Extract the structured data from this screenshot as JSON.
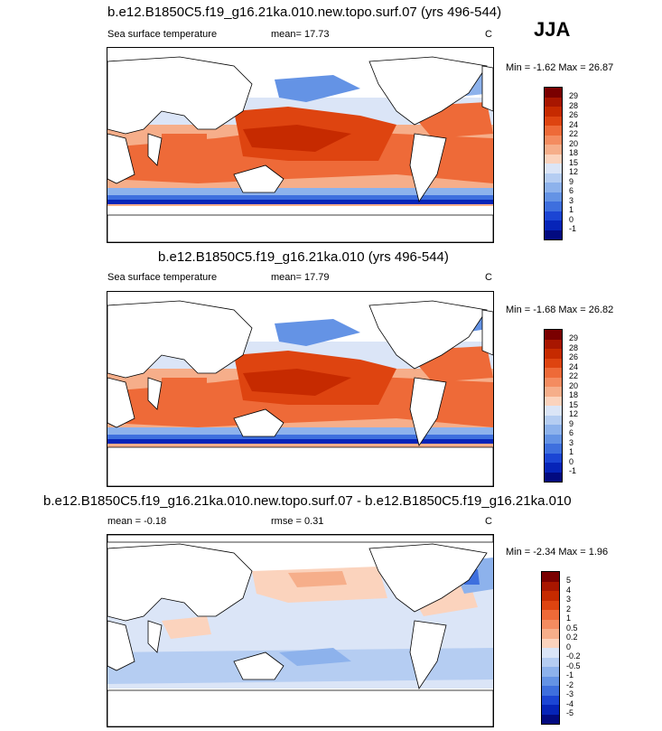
{
  "season": "JJA",
  "panels": [
    {
      "title": "b.e12.B1850C5.f19_g16.21ka.010.new.topo.surf.07 (yrs 496-544)",
      "left_label": "Sea surface temperature",
      "mean_label": "mean=",
      "mean_value": "17.73",
      "units": "C",
      "minmax_label": "Min = -1.62 Max = 26.87",
      "colorbar": {
        "labels": [
          "29",
          "28",
          "26",
          "24",
          "22",
          "20",
          "18",
          "15",
          "12",
          "9",
          "6",
          "3",
          "1",
          "0",
          "-1"
        ],
        "colors": [
          "#7a0000",
          "#a81600",
          "#c62a00",
          "#de4410",
          "#ee6a38",
          "#f48c60",
          "#f6ae8a",
          "#fbd3bd",
          "#dbe5f7",
          "#b5cdf2",
          "#8db2ec",
          "#6493e5",
          "#3e6fde",
          "#1b45d4",
          "#0624b8",
          "#020a80"
        ]
      }
    },
    {
      "title": "b.e12.B1850C5.f19_g16.21ka.010 (yrs 496-544)",
      "left_label": "Sea surface temperature",
      "mean_label": "mean=",
      "mean_value": "17.79",
      "units": "C",
      "minmax_label": "Min = -1.68 Max = 26.82",
      "colorbar": {
        "labels": [
          "29",
          "28",
          "26",
          "24",
          "22",
          "20",
          "18",
          "15",
          "12",
          "9",
          "6",
          "3",
          "1",
          "0",
          "-1"
        ],
        "colors": [
          "#7a0000",
          "#a81600",
          "#c62a00",
          "#de4410",
          "#ee6a38",
          "#f48c60",
          "#f6ae8a",
          "#fbd3bd",
          "#dbe5f7",
          "#b5cdf2",
          "#8db2ec",
          "#6493e5",
          "#3e6fde",
          "#1b45d4",
          "#0624b8",
          "#020a80"
        ]
      }
    },
    {
      "title": "b.e12.B1850C5.f19_g16.21ka.010.new.topo.surf.07 - b.e12.B1850C5.f19_g16.21ka.010",
      "mean_label": "mean =",
      "mean_value": "-0.18",
      "rmse_label": "rmse =",
      "rmse_value": "0.31",
      "units": "C",
      "minmax_label": "Min = -2.34 Max = 1.96",
      "colorbar": {
        "labels": [
          "5",
          "4",
          "3",
          "2",
          "1",
          "0.5",
          "0.2",
          "0",
          "-0.2",
          "-0.5",
          "-1",
          "-2",
          "-3",
          "-4",
          "-5"
        ],
        "colors": [
          "#7a0000",
          "#a81600",
          "#c62a00",
          "#de4410",
          "#ee6a38",
          "#f48c60",
          "#f6ae8a",
          "#fbd3bd",
          "#dbe5f7",
          "#b5cdf2",
          "#8db2ec",
          "#6493e5",
          "#3e6fde",
          "#1b45d4",
          "#0624b8",
          "#020a80"
        ]
      }
    }
  ],
  "chart_data": [
    {
      "type": "heatmap",
      "title": "b.e12.B1850C5.f19_g16.21ka.010.new.topo.surf.07 (yrs 496-544)",
      "variable": "Sea surface temperature",
      "units": "C",
      "mean": 17.73,
      "min": -1.62,
      "max": 26.87,
      "contour_levels": [
        -1,
        0,
        1,
        3,
        6,
        9,
        12,
        15,
        18,
        20,
        22,
        24,
        26,
        28,
        29
      ],
      "projection": "global cylindrical equidistant, centered on Pacific"
    },
    {
      "type": "heatmap",
      "title": "b.e12.B1850C5.f19_g16.21ka.010 (yrs 496-544)",
      "variable": "Sea surface temperature",
      "units": "C",
      "mean": 17.79,
      "min": -1.68,
      "max": 26.82,
      "contour_levels": [
        -1,
        0,
        1,
        3,
        6,
        9,
        12,
        15,
        18,
        20,
        22,
        24,
        26,
        28,
        29
      ],
      "projection": "global cylindrical equidistant, centered on Pacific"
    },
    {
      "type": "heatmap",
      "title": "b.e12.B1850C5.f19_g16.21ka.010.new.topo.surf.07 - b.e12.B1850C5.f19_g16.21ka.010",
      "units": "C",
      "mean": -0.18,
      "rmse": 0.31,
      "min": -2.34,
      "max": 1.96,
      "contour_levels": [
        -5,
        -4,
        -3,
        -2,
        -1,
        -0.5,
        -0.2,
        0,
        0.2,
        0.5,
        1,
        2,
        3,
        4,
        5
      ],
      "projection": "global cylindrical equidistant, centered on Pacific"
    }
  ]
}
